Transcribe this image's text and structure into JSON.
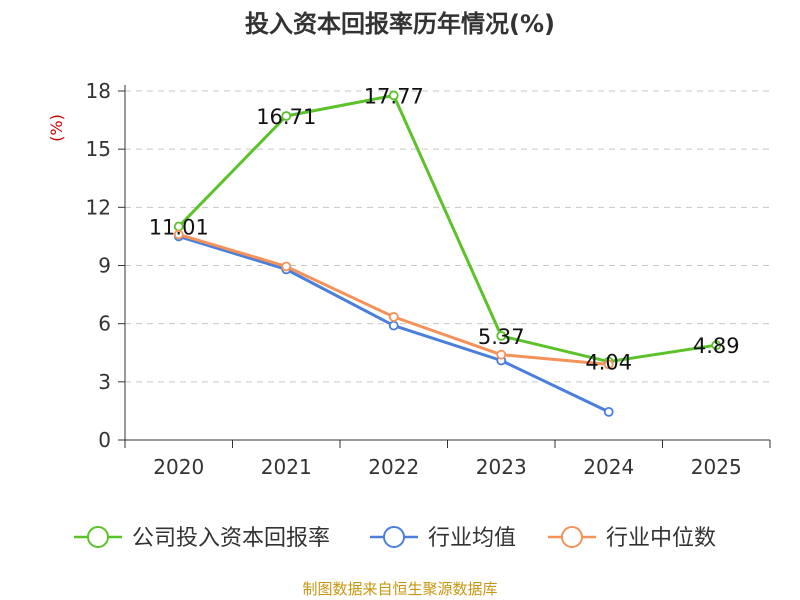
{
  "chart_data": {
    "type": "line",
    "title": "投入资本回报率历年情况(%)",
    "ylabel": "(%)",
    "xlabel": "",
    "categories": [
      "2020",
      "2021",
      "2022",
      "2023",
      "2024",
      "2025"
    ],
    "ylim": [
      0,
      18
    ],
    "yticks": [
      0,
      3,
      6,
      9,
      12,
      15,
      18
    ],
    "grid": true,
    "legend_position": "bottom",
    "series": [
      {
        "name": "公司投入资本回报率",
        "color": "#5bc22a",
        "values": [
          11.01,
          16.71,
          17.77,
          5.37,
          4.04,
          4.89
        ],
        "labels": [
          "11.01",
          "16.71",
          "17.77",
          "5.37",
          "4.04",
          "4.89"
        ]
      },
      {
        "name": "行业均值",
        "color": "#4a7fdc",
        "values": [
          10.5,
          8.8,
          5.9,
          4.1,
          1.45,
          null
        ]
      },
      {
        "name": "行业中位数",
        "color": "#f5925a",
        "values": [
          10.6,
          8.95,
          6.35,
          4.4,
          3.9,
          null
        ]
      }
    ]
  },
  "source": "制图数据来自恒生聚源数据库"
}
